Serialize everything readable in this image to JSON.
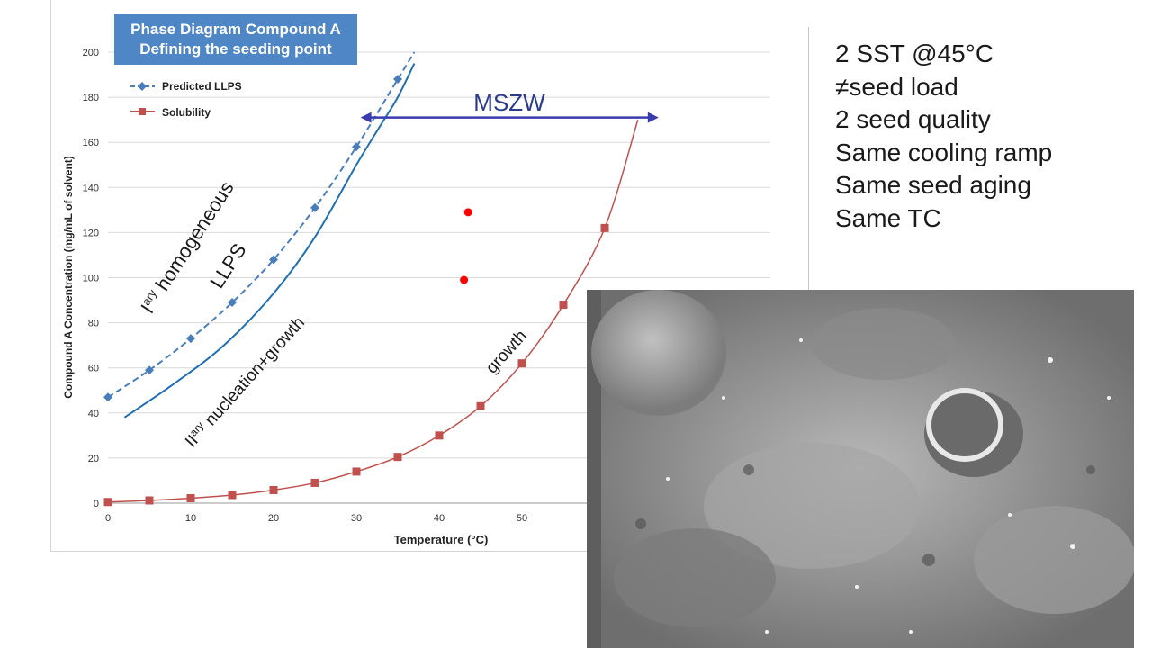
{
  "chart_data": {
    "type": "line",
    "title": "Phase Diagram Compound A",
    "subtitle": "Defining the seeding point",
    "xlabel": "Temperature (°C)",
    "ylabel": "Compound A Concentration (mg/mL of solvent)",
    "xlim": [
      0,
      60
    ],
    "ylim": [
      0,
      200
    ],
    "x_ticks": [
      "0",
      "10",
      "20",
      "30",
      "40",
      "50"
    ],
    "y_ticks": [
      "0",
      "20",
      "40",
      "60",
      "80",
      "100",
      "120",
      "140",
      "160",
      "180",
      "200"
    ],
    "grid": "horizontal",
    "legend_position": "top-left",
    "series": [
      {
        "name": "Predicted LLPS",
        "style": "dashed-diamond",
        "color": "#4a7ebb",
        "x": [
          0,
          5,
          10,
          15,
          20,
          25,
          30,
          35,
          37
        ],
        "y": [
          47,
          59,
          73,
          89,
          108,
          131,
          158,
          188,
          200
        ]
      },
      {
        "name": "Solubility",
        "style": "solid-square",
        "color": "#c0504d",
        "x": [
          0,
          5,
          10,
          15,
          20,
          25,
          30,
          35,
          40,
          45,
          50,
          55,
          60,
          64
        ],
        "y": [
          0.5,
          1.2,
          2.2,
          3.6,
          5.8,
          9,
          14,
          20.5,
          30,
          43,
          62,
          88,
          122,
          170
        ]
      },
      {
        "style": "solid",
        "color": "#1f6fb4",
        "x": [
          2,
          8,
          14,
          20,
          25,
          30,
          33,
          35,
          37
        ],
        "y": [
          38,
          53,
          70,
          93,
          118,
          150,
          168,
          180,
          195
        ]
      }
    ],
    "points": [
      {
        "x": 43.5,
        "y": 129,
        "color": "#ff0000"
      },
      {
        "x": 43,
        "y": 99,
        "color": "#ff0000"
      }
    ],
    "annotations": {
      "mszw": {
        "label": "MSZW",
        "x_from": 30.5,
        "x_to": 66.5,
        "y": 171
      },
      "llps": {
        "prefix": "I",
        "sup": "ary",
        "text": " homogeneous",
        "line2": "LLPS"
      },
      "nucleation": {
        "prefix": "II",
        "sup": "ary",
        "text": " nucleation+growth"
      },
      "growth": "growth"
    }
  },
  "notes": [
    "2 SST @45°C",
    "≠seed load",
    "2 seed quality",
    "Same cooling ramp",
    "Same seed aging",
    "Same TC"
  ]
}
